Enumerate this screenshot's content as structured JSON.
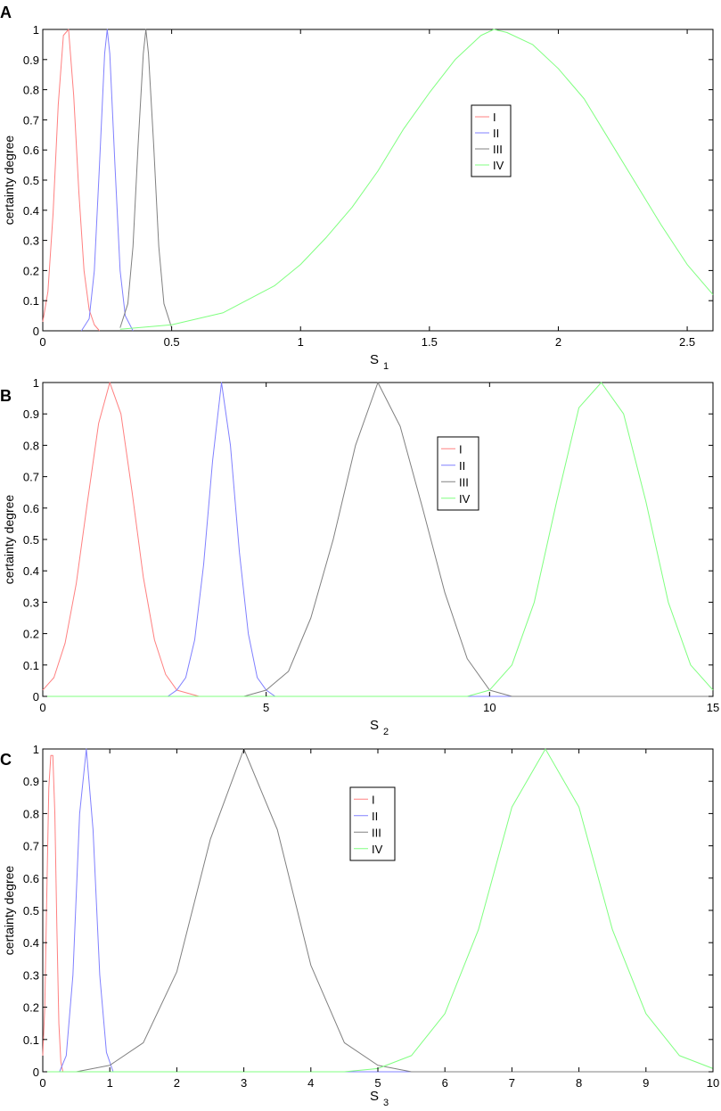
{
  "chart_data": [
    {
      "panel_label": "A",
      "type": "line",
      "ylabel": "certainty degree",
      "xlabel_main": "S",
      "xlabel_sub": "1",
      "xlim": [
        0,
        2.6
      ],
      "ylim": [
        0,
        1
      ],
      "xticks": [
        0,
        0.5,
        1,
        1.5,
        2,
        2.5
      ],
      "xtick_labels": [
        "0",
        "0.5",
        "1",
        "1.5",
        "2",
        "2.5"
      ],
      "yticks": [
        0,
        0.1,
        0.2,
        0.3,
        0.4,
        0.5,
        0.6,
        0.7,
        0.8,
        0.9,
        1
      ],
      "ytick_labels": [
        "0",
        "0.1",
        "0.2",
        "0.3",
        "0.4",
        "0.5",
        "0.6",
        "0.7",
        "0.8",
        "0.9",
        "1"
      ],
      "grid": false,
      "legend_position": "center-right",
      "series": [
        {
          "name": "I",
          "color": "#ff8080",
          "x": [
            0,
            0.02,
            0.04,
            0.06,
            0.08,
            0.1,
            0.12,
            0.14,
            0.16,
            0.18,
            0.2,
            0.22
          ],
          "y": [
            0.03,
            0.13,
            0.39,
            0.75,
            0.98,
            1,
            0.78,
            0.46,
            0.2,
            0.07,
            0.02,
            0.0
          ]
        },
        {
          "name": "II",
          "color": "#8080ff",
          "x": [
            0.15,
            0.18,
            0.2,
            0.22,
            0.24,
            0.25,
            0.26,
            0.28,
            0.3,
            0.32,
            0.35
          ],
          "y": [
            0.0,
            0.04,
            0.2,
            0.55,
            0.92,
            1,
            0.92,
            0.55,
            0.2,
            0.05,
            0.0
          ]
        },
        {
          "name": "III",
          "color": "#808080",
          "x": [
            0.3,
            0.33,
            0.35,
            0.37,
            0.39,
            0.4,
            0.41,
            0.43,
            0.45,
            0.47,
            0.5
          ],
          "y": [
            0.01,
            0.09,
            0.28,
            0.62,
            0.92,
            1,
            0.92,
            0.62,
            0.28,
            0.09,
            0.01
          ]
        },
        {
          "name": "IV",
          "color": "#80ff80",
          "x": [
            0.3,
            0.5,
            0.7,
            0.9,
            1.0,
            1.1,
            1.2,
            1.3,
            1.4,
            1.5,
            1.6,
            1.7,
            1.75,
            1.8,
            1.9,
            2.0,
            2.1,
            2.2,
            2.3,
            2.4,
            2.5,
            2.6
          ],
          "y": [
            0.005,
            0.02,
            0.06,
            0.15,
            0.22,
            0.31,
            0.41,
            0.53,
            0.67,
            0.79,
            0.9,
            0.98,
            1,
            0.99,
            0.95,
            0.87,
            0.77,
            0.63,
            0.49,
            0.35,
            0.22,
            0.12
          ]
        }
      ]
    },
    {
      "panel_label": "B",
      "type": "line",
      "ylabel": "certainty degree",
      "xlabel_main": "S",
      "xlabel_sub": "2",
      "xlim": [
        0,
        15
      ],
      "ylim": [
        0,
        1
      ],
      "xticks": [
        0,
        5,
        10,
        15
      ],
      "xtick_labels": [
        "0",
        "5",
        "10",
        "15"
      ],
      "yticks": [
        0,
        0.1,
        0.2,
        0.3,
        0.4,
        0.5,
        0.6,
        0.7,
        0.8,
        0.9,
        1
      ],
      "ytick_labels": [
        "0",
        "0.1",
        "0.2",
        "0.3",
        "0.4",
        "0.5",
        "0.6",
        "0.7",
        "0.8",
        "0.9",
        "1"
      ],
      "grid": false,
      "legend_position": "center-right",
      "series": [
        {
          "name": "I",
          "color": "#ff8080",
          "x": [
            0,
            0.25,
            0.5,
            0.75,
            1.0,
            1.25,
            1.5,
            1.75,
            2.0,
            2.25,
            2.5,
            2.75,
            3.0,
            3.5,
            15
          ],
          "y": [
            0.02,
            0.06,
            0.17,
            0.36,
            0.62,
            0.87,
            1,
            0.9,
            0.65,
            0.38,
            0.18,
            0.07,
            0.02,
            0.0,
            0.0
          ]
        },
        {
          "name": "II",
          "color": "#8080ff",
          "x": [
            0,
            2.8,
            3.0,
            3.2,
            3.4,
            3.6,
            3.8,
            4.0,
            4.2,
            4.4,
            4.6,
            4.8,
            5.0,
            5.2,
            15
          ],
          "y": [
            0.0,
            0.0,
            0.02,
            0.06,
            0.18,
            0.42,
            0.75,
            1,
            0.8,
            0.46,
            0.2,
            0.06,
            0.02,
            0.0,
            0.0
          ]
        },
        {
          "name": "III",
          "color": "#808080",
          "x": [
            0,
            4.5,
            5.0,
            5.5,
            6.0,
            6.5,
            7.0,
            7.5,
            8.0,
            8.5,
            9.0,
            9.5,
            10.0,
            10.5,
            15
          ],
          "y": [
            0.0,
            0.0,
            0.02,
            0.08,
            0.25,
            0.5,
            0.8,
            1,
            0.86,
            0.6,
            0.33,
            0.12,
            0.02,
            0.0,
            0.0
          ]
        },
        {
          "name": "IV",
          "color": "#80ff80",
          "x": [
            0,
            9.5,
            10.0,
            10.5,
            11.0,
            11.5,
            12.0,
            12.5,
            13.0,
            13.5,
            14.0,
            14.5,
            15.0
          ],
          "y": [
            0.0,
            0.0,
            0.02,
            0.1,
            0.3,
            0.62,
            0.92,
            1,
            0.9,
            0.62,
            0.3,
            0.1,
            0.02
          ]
        }
      ]
    },
    {
      "panel_label": "C",
      "type": "line",
      "ylabel": "certainty degree",
      "xlabel_main": "S",
      "xlabel_sub": "3",
      "xlim": [
        0,
        10
      ],
      "ylim": [
        0,
        1
      ],
      "xticks": [
        0,
        1,
        2,
        3,
        4,
        5,
        6,
        7,
        8,
        9,
        10
      ],
      "xtick_labels": [
        "0",
        "1",
        "2",
        "3",
        "4",
        "5",
        "6",
        "7",
        "8",
        "9",
        "10"
      ],
      "yticks": [
        0,
        0.1,
        0.2,
        0.3,
        0.4,
        0.5,
        0.6,
        0.7,
        0.8,
        0.9,
        1
      ],
      "ytick_labels": [
        "0",
        "0.1",
        "0.2",
        "0.3",
        "0.4",
        "0.5",
        "0.6",
        "0.7",
        "0.8",
        "0.9",
        "1"
      ],
      "grid": false,
      "legend_position": "center",
      "series": [
        {
          "name": "I",
          "color": "#ff8080",
          "x": [
            0,
            0.03,
            0.06,
            0.09,
            0.12,
            0.15,
            0.18,
            0.21,
            0.24,
            0.27,
            0.3,
            10
          ],
          "y": [
            0.05,
            0.2,
            0.55,
            0.88,
            0.98,
            0.98,
            0.8,
            0.45,
            0.15,
            0.03,
            0.0,
            0.0
          ]
        },
        {
          "name": "II",
          "color": "#8080ff",
          "x": [
            0,
            0.25,
            0.35,
            0.45,
            0.55,
            0.65,
            0.75,
            0.85,
            0.95,
            1.05,
            10
          ],
          "y": [
            0.0,
            0.0,
            0.05,
            0.3,
            0.8,
            1,
            0.75,
            0.3,
            0.06,
            0.0,
            0.0
          ]
        },
        {
          "name": "III",
          "color": "#808080",
          "x": [
            0,
            0.5,
            1.0,
            1.5,
            2.0,
            2.5,
            3.0,
            3.5,
            4.0,
            4.5,
            5.0,
            5.5,
            10
          ],
          "y": [
            0.0,
            0.0,
            0.02,
            0.09,
            0.31,
            0.72,
            1,
            0.75,
            0.33,
            0.09,
            0.02,
            0.0,
            0.0
          ]
        },
        {
          "name": "IV",
          "color": "#80ff80",
          "x": [
            0,
            4.5,
            5.0,
            5.5,
            6.0,
            6.5,
            7.0,
            7.5,
            8.0,
            8.5,
            9.0,
            9.5,
            10.0
          ],
          "y": [
            0.0,
            0.0,
            0.01,
            0.05,
            0.18,
            0.44,
            0.82,
            1,
            0.82,
            0.44,
            0.18,
            0.05,
            0.01
          ]
        }
      ]
    }
  ]
}
